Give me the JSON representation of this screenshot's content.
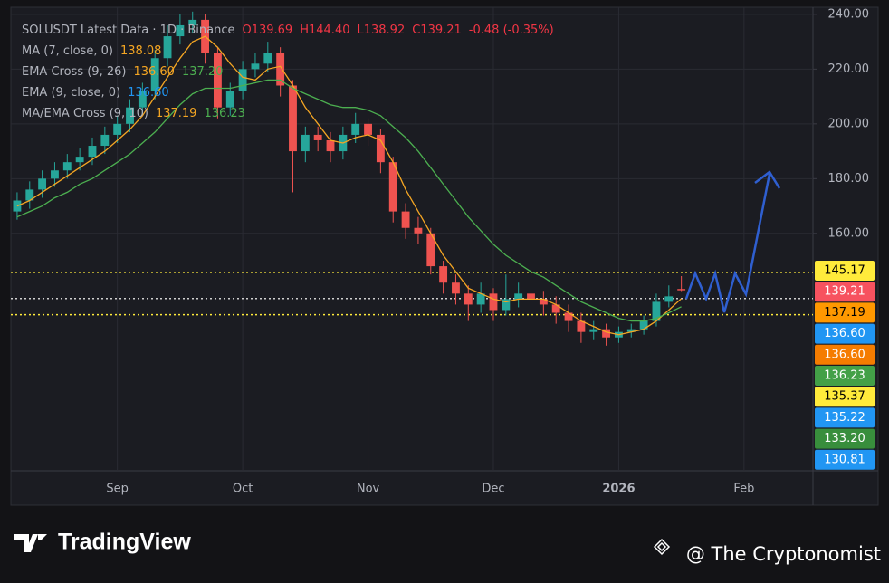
{
  "header": {
    "symbol": "SOLUSDT Latest Data · 1D · Binance",
    "ohlc": [
      "O139.69",
      "H144.40",
      "L138.92",
      "C139.21",
      "-0.48 (-0.35%)"
    ]
  },
  "indicators": [
    {
      "name": "MA (7, close, 0)",
      "values": [
        {
          "value": 138.08,
          "label": "138.08",
          "color": "#f5a623"
        }
      ]
    },
    {
      "name": "EMA Cross (9, 26)",
      "values": [
        {
          "value": 136.6,
          "label": "136.60",
          "color": "#f5a623"
        },
        {
          "value": 137.2,
          "label": "137.20",
          "color": "#4caf50"
        }
      ]
    },
    {
      "name": "EMA (9, close, 0)",
      "values": [
        {
          "value": 136.6,
          "label": "136.60",
          "color": "#2196f3"
        }
      ]
    },
    {
      "name": "MA/EMA Cross (9, 10)",
      "values": [
        {
          "value": 137.19,
          "label": "137.19",
          "color": "#f5a623"
        },
        {
          "value": 136.23,
          "label": "136.23",
          "color": "#4caf50"
        }
      ]
    }
  ],
  "chart_data": {
    "type": "candlestick",
    "categories": [
      null,
      null,
      null,
      null,
      null,
      null,
      null,
      null,
      "Sep",
      null,
      null,
      null,
      null,
      null,
      null,
      null,
      null,
      null,
      "Oct",
      null,
      null,
      null,
      null,
      null,
      null,
      null,
      null,
      null,
      "Nov",
      null,
      null,
      null,
      null,
      null,
      null,
      null,
      null,
      null,
      "Dec",
      null,
      null,
      null,
      null,
      null,
      null,
      null,
      null,
      null,
      "2026",
      null,
      null,
      null,
      null,
      null,
      null,
      null,
      null,
      null,
      "Feb",
      null,
      null,
      null,
      null,
      null
    ],
    "open": [
      168,
      172,
      176,
      180,
      183,
      186,
      188,
      192,
      196,
      200,
      206,
      212,
      224,
      232,
      236,
      238,
      226,
      206,
      212,
      220,
      222,
      226,
      214,
      190,
      196,
      194,
      190,
      196,
      200,
      196,
      186,
      168,
      162,
      160,
      148,
      142,
      138,
      134,
      138,
      132,
      136,
      138,
      136,
      134,
      131,
      128,
      124,
      125,
      122,
      124,
      125,
      128,
      135,
      139.69,
      null,
      null,
      null,
      null,
      null,
      null,
      null,
      null,
      null,
      null
    ],
    "high": [
      175,
      179,
      183,
      186,
      189,
      191,
      195,
      199,
      203,
      209,
      215,
      227,
      236,
      240,
      241,
      240,
      228,
      215,
      223,
      226,
      230,
      228,
      216,
      199,
      199,
      197,
      199,
      204,
      202,
      198,
      188,
      171,
      166,
      162,
      150,
      145,
      141,
      142,
      140,
      145,
      142,
      141,
      139,
      137,
      134,
      131,
      128,
      127,
      126,
      127,
      130,
      138,
      141,
      144.4,
      null,
      null,
      null,
      null,
      null,
      null,
      null,
      null,
      null,
      null
    ],
    "low": [
      165,
      169,
      173,
      177,
      180,
      183,
      185,
      189,
      193,
      197,
      203,
      209,
      221,
      229,
      233,
      222,
      202,
      203,
      209,
      217,
      219,
      210,
      175,
      186,
      190,
      186,
      187,
      193,
      192,
      182,
      164,
      158,
      156,
      145,
      138,
      134,
      128,
      131,
      128,
      130,
      133,
      132,
      130,
      127,
      124,
      120,
      121,
      119,
      120,
      122,
      123,
      126,
      133,
      138.92,
      null,
      null,
      null,
      null,
      null,
      null,
      null,
      null,
      null,
      null
    ],
    "close": [
      172,
      176,
      180,
      183,
      186,
      188,
      192,
      196,
      200,
      206,
      212,
      224,
      232,
      236,
      238,
      226,
      206,
      212,
      220,
      222,
      226,
      214,
      190,
      196,
      194,
      190,
      196,
      200,
      196,
      186,
      168,
      162,
      160,
      148,
      142,
      138,
      134,
      138,
      132,
      136,
      138,
      136,
      134,
      131,
      128,
      124,
      125,
      122,
      124,
      125,
      128,
      135,
      137,
      139.21,
      null,
      null,
      null,
      null,
      null,
      null,
      null,
      null,
      null,
      null
    ],
    "up_color": "#26a69a",
    "down_color": "#ef5350",
    "lines": [
      {
        "color": "#f5a623",
        "values": [
          170,
          172,
          175,
          178,
          181,
          184,
          187,
          190,
          194,
          198,
          203,
          210,
          217,
          224,
          230,
          232,
          228,
          222,
          217,
          216,
          220,
          221,
          214,
          206,
          200,
          194,
          193,
          195,
          196,
          194,
          186,
          176,
          168,
          160,
          152,
          146,
          140,
          138,
          136,
          135,
          136,
          136,
          136,
          134,
          131,
          128,
          126,
          124,
          123,
          124,
          125,
          128,
          132,
          136.2,
          null,
          null,
          null,
          null,
          null,
          null,
          null,
          null,
          null,
          null
        ]
      },
      {
        "color": "#4caf50",
        "values": [
          166,
          168,
          170,
          173,
          175,
          178,
          180,
          183,
          186,
          189,
          193,
          197,
          202,
          207,
          211,
          213,
          213,
          213,
          214,
          215,
          216,
          216,
          213,
          211,
          209,
          207,
          206,
          206,
          205,
          203,
          199,
          195,
          190,
          184,
          178,
          172,
          166,
          161,
          156,
          152,
          149,
          146,
          144,
          141,
          138,
          135,
          133,
          131,
          129,
          128,
          128,
          129,
          131,
          133.2,
          null,
          null,
          null,
          null,
          null,
          null,
          null,
          null,
          null,
          null
        ]
      }
    ],
    "levels": [
      {
        "value": 145.77,
        "color": "#ffeb3b"
      },
      {
        "value": 136.21,
        "color": "#d0d0d0"
      },
      {
        "value": 130.28,
        "color": "#ffeb3b"
      }
    ],
    "ylim": [
      73.3,
      242.6
    ],
    "yticks": [
      {
        "value": 240,
        "label": "240.00"
      },
      {
        "value": 220,
        "label": "220.00"
      },
      {
        "value": 200,
        "label": "200.00"
      },
      {
        "value": 180,
        "label": "180.00"
      },
      {
        "value": 160,
        "label": "160.00"
      }
    ],
    "grid": true,
    "price_badges": [
      {
        "value": 145.17,
        "label": "145.17",
        "color": "#ffeb3b",
        "text_color": "#000000"
      },
      {
        "value": 139.21,
        "label": "139.21",
        "color": "#f7525f",
        "text_color": "#ffffff"
      },
      {
        "value": 137.19,
        "label": "137.19",
        "color": "#ff9800",
        "text_color": "#000000"
      },
      {
        "value": 136.6,
        "label": "136.60",
        "color": "#2196f3",
        "text_color": "#ffffff"
      },
      {
        "value": 136.6,
        "label": "136.60",
        "color": "#f57c00",
        "text_color": "#ffffff"
      },
      {
        "value": 136.23,
        "label": "136.23",
        "color": "#43a047",
        "text_color": "#ffffff"
      },
      {
        "value": 135.37,
        "label": "135.37",
        "color": "#ffeb3b",
        "text_color": "#000000"
      },
      {
        "value": 135.22,
        "label": "135.22",
        "color": "#2196f3",
        "text_color": "#ffffff"
      },
      {
        "value": 133.2,
        "label": "133.20",
        "color": "#388e3c",
        "text_color": "#ffffff"
      },
      {
        "value": 130.81,
        "label": "130.81",
        "color": "#2196f3",
        "text_color": "#ffffff"
      }
    ]
  },
  "footer": {
    "brand": "TradingView",
    "credit": "@ The Cryptonomist"
  }
}
